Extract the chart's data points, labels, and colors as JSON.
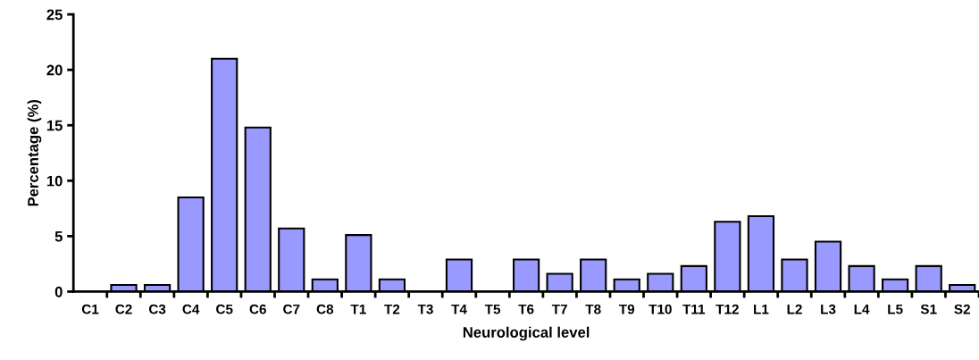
{
  "chart_data": {
    "type": "bar",
    "xlabel": "Neurological level",
    "ylabel": "Percentage (%)",
    "categories": [
      "C1",
      "C2",
      "C3",
      "C4",
      "C5",
      "C6",
      "C7",
      "C8",
      "T1",
      "T2",
      "T3",
      "T4",
      "T5",
      "T6",
      "T7",
      "T8",
      "T9",
      "T10",
      "T11",
      "T12",
      "L1",
      "L2",
      "L3",
      "L4",
      "L5",
      "S1",
      "S2"
    ],
    "values": [
      0,
      0.6,
      0.6,
      8.5,
      21,
      14.8,
      5.7,
      1.1,
      5.1,
      1.1,
      0,
      2.9,
      0,
      2.9,
      1.6,
      2.9,
      1.1,
      1.6,
      2.3,
      6.3,
      6.8,
      2.9,
      4.5,
      2.3,
      1.1,
      2.3,
      0.6
    ],
    "color": "#9999ff",
    "ylim": [
      0,
      25
    ],
    "yticks": [
      0,
      5,
      10,
      15,
      20,
      25
    ],
    "grid": false,
    "legend": false
  }
}
